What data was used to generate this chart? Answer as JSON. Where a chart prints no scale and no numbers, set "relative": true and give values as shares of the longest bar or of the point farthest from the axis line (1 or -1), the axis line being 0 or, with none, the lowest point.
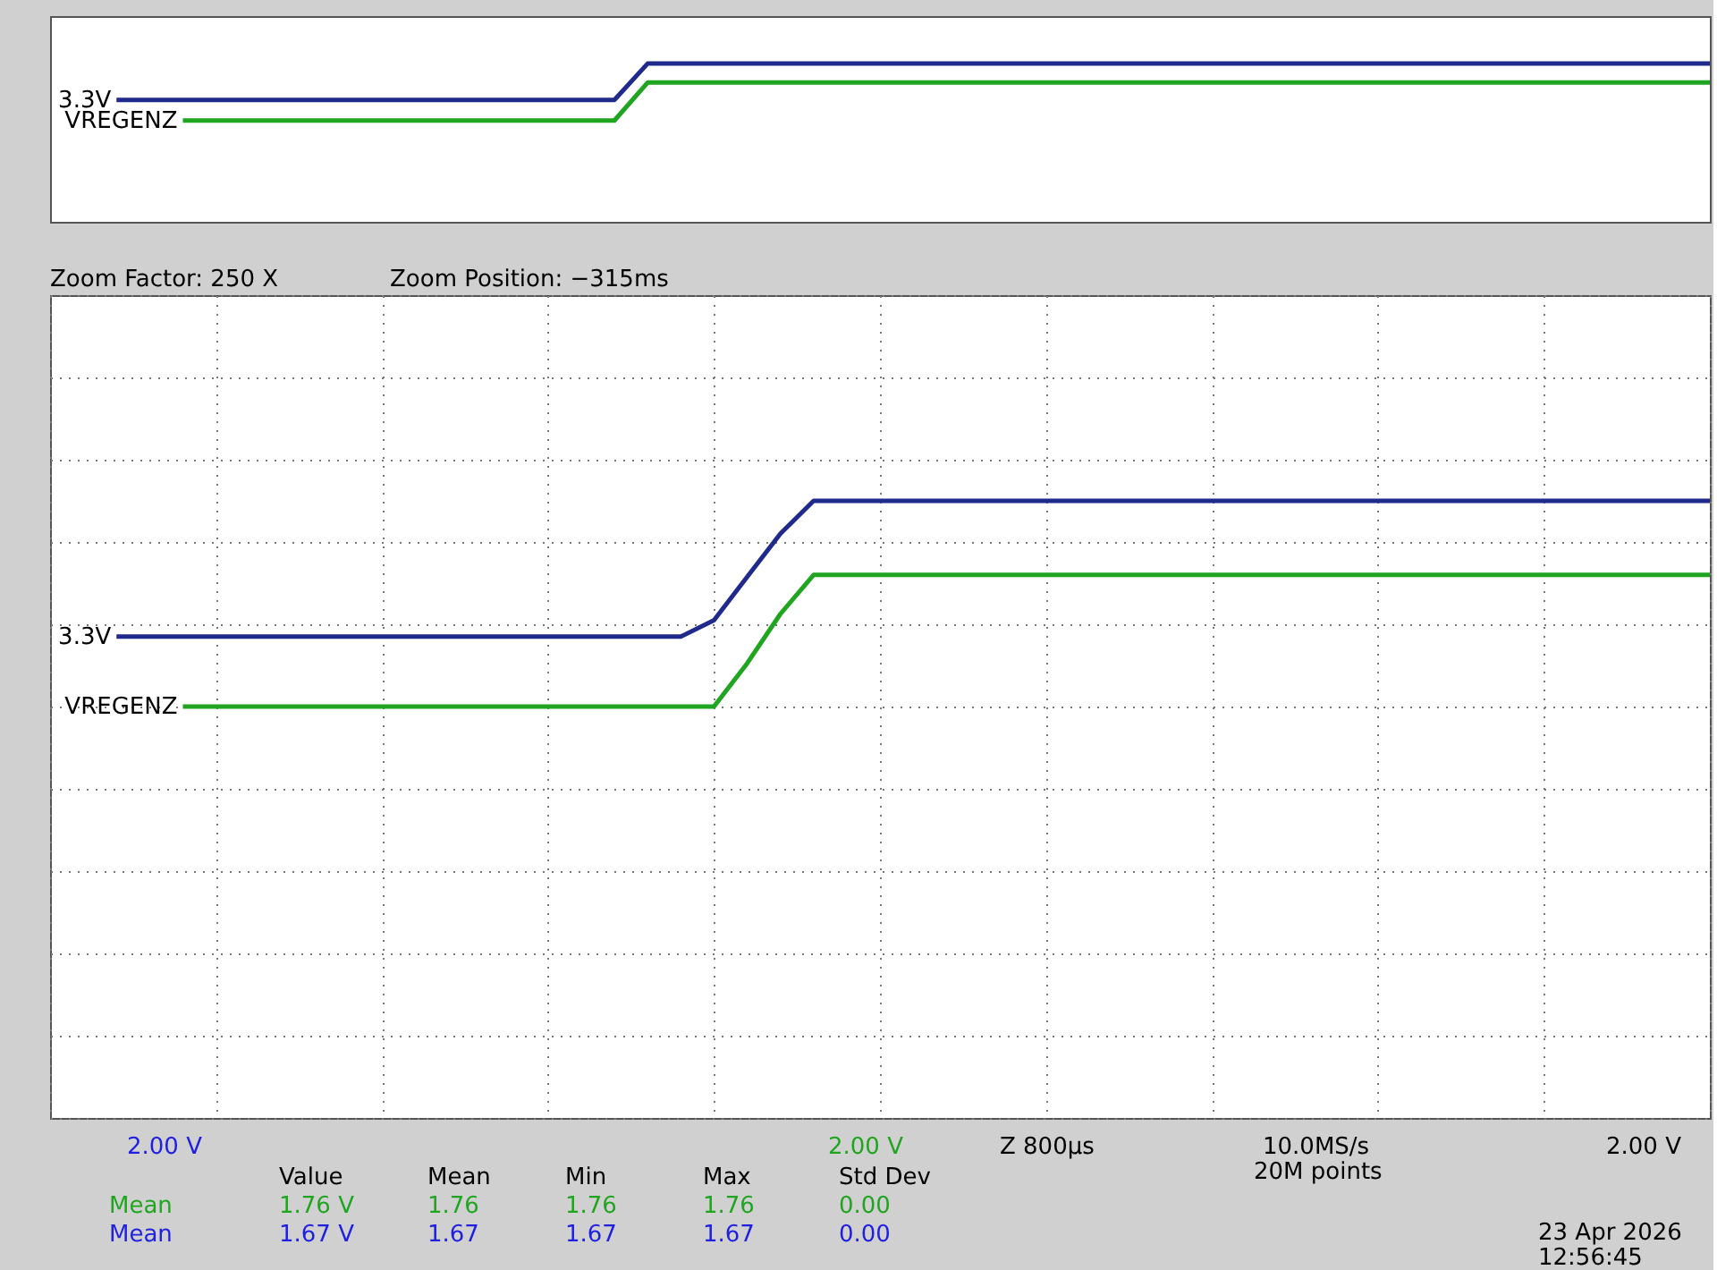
{
  "chart_data": [
    {
      "type": "line",
      "relative": true,
      "grid": false,
      "legend": false,
      "marker": "none",
      "line_style": "solid",
      "categories": [
        null,
        null,
        null,
        null,
        null,
        null,
        null,
        null,
        null,
        null,
        null,
        null,
        null,
        null,
        null,
        null,
        null,
        null,
        null,
        null,
        null,
        null,
        null,
        null,
        null,
        null,
        null,
        null,
        null,
        null,
        null,
        null,
        null,
        null,
        null,
        null,
        null,
        null,
        null,
        null,
        null,
        null,
        null,
        null,
        null,
        null,
        null,
        null,
        null,
        null,
        null
      ],
      "series": [
        {
          "name": "3.3V",
          "color": "#1f2a8c",
          "values": [
            null,
            null,
            0.77,
            0.77,
            0.77,
            0.77,
            0.77,
            0.77,
            0.77,
            0.77,
            0.77,
            0.77,
            0.77,
            0.77,
            0.77,
            0.77,
            0.77,
            0.77,
            1,
            1,
            1,
            1,
            1,
            1,
            1,
            1,
            1,
            1,
            1,
            1,
            1,
            1,
            1,
            1,
            1,
            1,
            1,
            1,
            1,
            1,
            1,
            1,
            1,
            1,
            1,
            1,
            1,
            1,
            1,
            1,
            1
          ]
        },
        {
          "name": "VREGENZ",
          "color": "#1fa51f",
          "values": [
            null,
            null,
            null,
            null,
            0.64,
            0.64,
            0.64,
            0.64,
            0.64,
            0.64,
            0.64,
            0.64,
            0.64,
            0.64,
            0.64,
            0.64,
            0.64,
            0.64,
            0.88,
            0.88,
            0.88,
            0.88,
            0.88,
            0.88,
            0.88,
            0.88,
            0.88,
            0.88,
            0.88,
            0.88,
            0.88,
            0.88,
            0.88,
            0.88,
            0.88,
            0.88,
            0.88,
            0.88,
            0.88,
            0.88,
            0.88,
            0.88,
            0.88,
            0.88,
            0.88,
            0.88,
            0.88,
            0.88,
            0.88,
            0.88,
            0.88
          ]
        }
      ]
    },
    {
      "type": "line",
      "relative": true,
      "grid": true,
      "legend": false,
      "marker": "none",
      "line_style": "solid",
      "categories": [
        null,
        null,
        null,
        null,
        null,
        null,
        null,
        null,
        null,
        null,
        null,
        null,
        null,
        null,
        null,
        null,
        null,
        null,
        null,
        null,
        null,
        null,
        null,
        null,
        null,
        null,
        null,
        null,
        null,
        null,
        null,
        null,
        null,
        null,
        null,
        null,
        null,
        null,
        null,
        null,
        null,
        null,
        null,
        null,
        null,
        null,
        null,
        null,
        null,
        null,
        null
      ],
      "series": [
        {
          "name": "3.3V",
          "color": "#1f2a8c",
          "values": [
            null,
            null,
            0.34,
            0.34,
            0.34,
            0.34,
            0.34,
            0.34,
            0.34,
            0.34,
            0.34,
            0.34,
            0.34,
            0.34,
            0.34,
            0.34,
            0.34,
            0.34,
            0.34,
            0.34,
            0.42,
            0.63,
            0.84,
            1,
            1,
            1,
            1,
            1,
            1,
            1,
            1,
            1,
            1,
            1,
            1,
            1,
            1,
            1,
            1,
            1,
            1,
            1,
            1,
            1,
            1,
            1,
            1,
            1,
            1,
            1,
            1
          ]
        },
        {
          "name": "VREGENZ",
          "color": "#1fa51f",
          "values": [
            null,
            null,
            null,
            null,
            0,
            0,
            0,
            0,
            0,
            0,
            0,
            0,
            0,
            0,
            0,
            0,
            0,
            0,
            0,
            0,
            0,
            0.21,
            0.45,
            0.64,
            0.64,
            0.64,
            0.64,
            0.64,
            0.64,
            0.64,
            0.64,
            0.64,
            0.64,
            0.64,
            0.64,
            0.64,
            0.64,
            0.64,
            0.64,
            0.64,
            0.64,
            0.64,
            0.64,
            0.64,
            0.64,
            0.64,
            0.64,
            0.64,
            0.64,
            0.64,
            0.64
          ]
        }
      ],
      "annotations": [
        "Zoom Factor: 250 X",
        "Zoom Position: −315ms",
        "2.00 V",
        "2.00 V",
        "Z 800µs",
        "10.0MS/s",
        "20M points",
        "2.00 V",
        "Value",
        "Mean",
        "Min",
        "Max",
        "Std Dev",
        "Mean",
        "1.76 V",
        "1.76",
        "1.76",
        "1.76",
        "0.00",
        "Mean",
        "1.67 V",
        "1.67",
        "1.67",
        "1.67",
        "0.00",
        "23 Apr 2026",
        "12:56:45"
      ]
    }
  ]
}
